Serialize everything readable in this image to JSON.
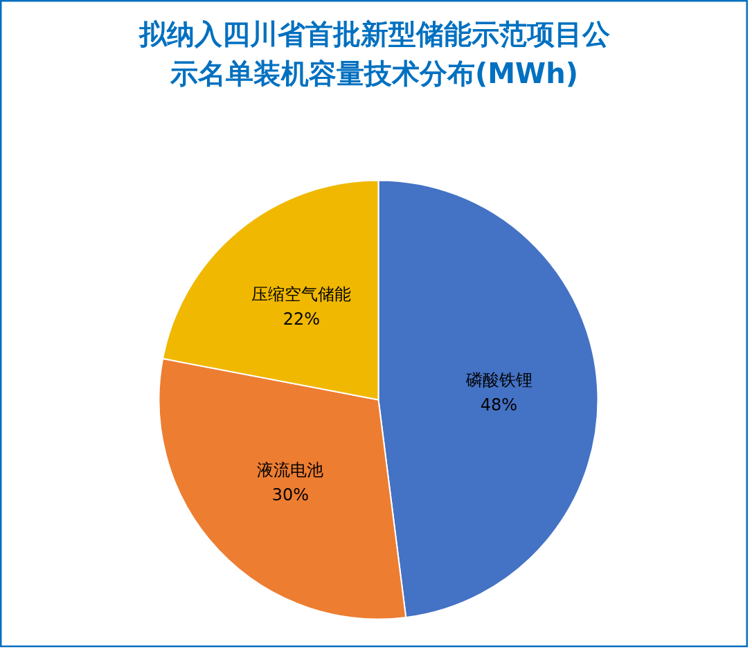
{
  "chart_data": {
    "type": "pie",
    "title": "拟纳入四川省首批新型储能示范项目公示名单装机容量技术分布(MWh)",
    "categories": [
      "磷酸铁锂",
      "液流电池",
      "压缩空气储能"
    ],
    "values": [
      48,
      30,
      22
    ],
    "colors": [
      "#4472c4",
      "#ed7d31",
      "#f0b800"
    ],
    "value_labels": [
      "48%",
      "30%",
      "22%"
    ]
  }
}
